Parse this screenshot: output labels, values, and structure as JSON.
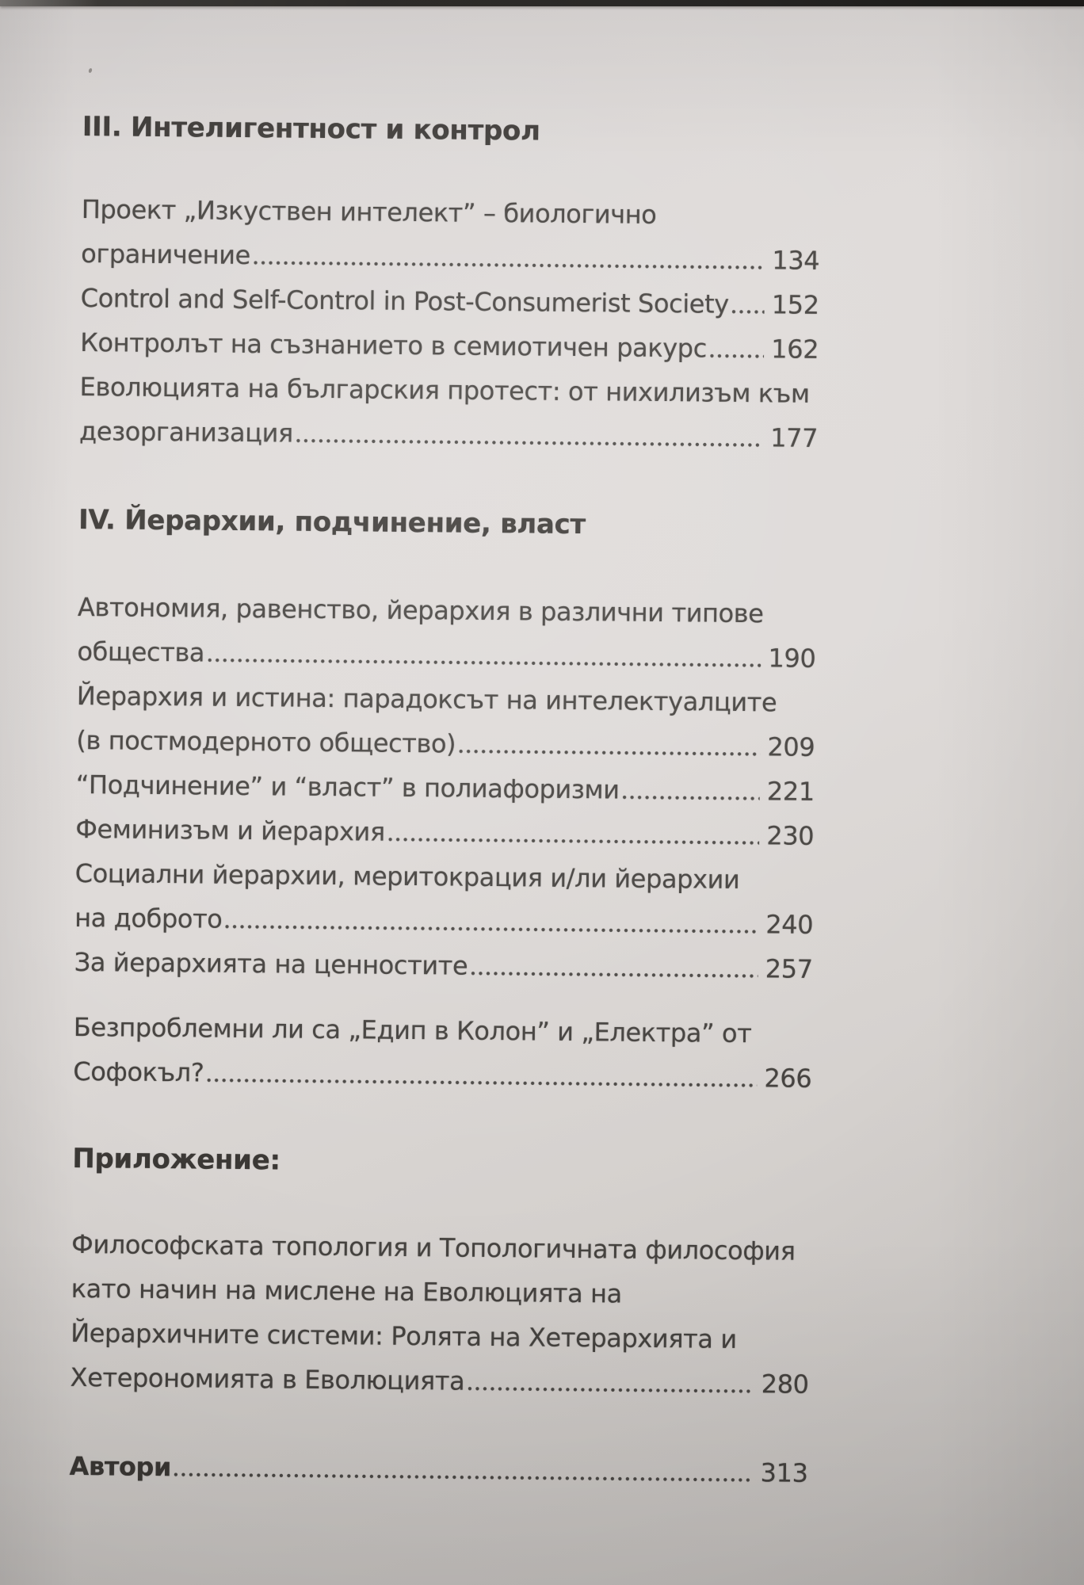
{
  "toc": {
    "section_iii": {
      "heading": "III. Интелигентност и контрол",
      "rows": [
        {
          "text": "Проект „Изкуствен интелект” – биологично"
        },
        {
          "text": "ограничение",
          "page": "134"
        },
        {
          "text": "Control and Self-Control in Post-Consumerist Society",
          "page": "152"
        },
        {
          "text": "Контролът на съзнанието в семиотичен ракурс",
          "page": "162"
        },
        {
          "text": "Еволюцията на българския протест: от нихилизъм към"
        },
        {
          "text": "дезорганизация",
          "page": "177"
        }
      ]
    },
    "section_iv": {
      "heading": "IV. Йерархии, подчинение, власт",
      "rows": [
        {
          "text": "Автономия, равенство, йерархия в различни типове"
        },
        {
          "text": "общества",
          "page": "190"
        },
        {
          "text": "Йерархия и истина: парадоксът на интелектуалците"
        },
        {
          "text": "(в постмодерното общество)",
          "page": "209"
        },
        {
          "text": "“Подчинение” и “власт” в полиафоризми",
          "page": "221"
        },
        {
          "text": "Феминизъм и йерархия",
          "page": "230"
        },
        {
          "text": "Социални йерархии, меритокрация и/ли йерархии"
        },
        {
          "text": "на доброто",
          "page": "240"
        },
        {
          "text": "За йерархията на ценностите",
          "page": "257"
        },
        {
          "text": "Безпроблемни ли са „Едип в Колон” и „Електра” от"
        },
        {
          "text": "Софокъл?",
          "page": "266"
        }
      ]
    },
    "appendix": {
      "heading": "Приложение:",
      "rows": [
        {
          "text": "Философската топология и Топологичната философия"
        },
        {
          "text": "като начин на мислене на Еволюцията на"
        },
        {
          "text": "Йерархичните системи: Ролята на Хетерархията и"
        },
        {
          "text": "Хетерономията в Еволюцията",
          "page": "280"
        }
      ]
    },
    "authors": {
      "label": "Автори",
      "page": "313"
    }
  }
}
